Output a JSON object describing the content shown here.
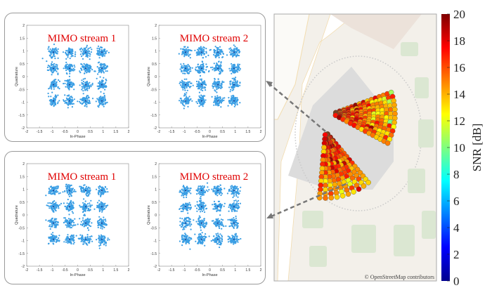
{
  "chart_data": [
    {
      "type": "scatter",
      "panel": "top-left",
      "title": "MIMO stream 1",
      "xlabel": "In-Phase",
      "ylabel": "Quadrature",
      "xlim": [
        -2,
        2
      ],
      "ylim": [
        -2,
        2
      ],
      "ticks": [
        "-2",
        "-1.5",
        "-1",
        "-0.5",
        "0",
        "0.5",
        "1",
        "1.5",
        "2"
      ],
      "constellation_centers": [
        -0.95,
        -0.32,
        0.32,
        0.95
      ],
      "color": "#3a9ee4"
    },
    {
      "type": "scatter",
      "panel": "top-right",
      "title": "MIMO stream 2",
      "xlabel": "In-Phase",
      "ylabel": "Quadrature",
      "xlim": [
        -2,
        2
      ],
      "ylim": [
        -2,
        2
      ],
      "ticks": [
        "-2",
        "-1.5",
        "-1",
        "-0.5",
        "0",
        "0.5",
        "1",
        "1.5",
        "2"
      ],
      "constellation_centers": [
        -0.95,
        -0.32,
        0.32,
        0.95
      ],
      "color": "#3a9ee4"
    },
    {
      "type": "scatter",
      "panel": "bottom-left",
      "title": "MIMO stream 1",
      "xlabel": "In-Phase",
      "ylabel": "Quadrature",
      "xlim": [
        -2,
        2
      ],
      "ylim": [
        -2,
        2
      ],
      "ticks": [
        "-2",
        "-1.5",
        "-1",
        "-0.5",
        "0",
        "0.5",
        "1",
        "1.5",
        "2"
      ],
      "constellation_centers": [
        -0.95,
        -0.32,
        0.32,
        0.95
      ],
      "color": "#3a9ee4"
    },
    {
      "type": "scatter",
      "panel": "bottom-right",
      "title": "MIMO stream 2",
      "xlabel": "In-Phase",
      "ylabel": "Quadrature",
      "xlim": [
        -2,
        2
      ],
      "ylim": [
        -2,
        2
      ],
      "ticks": [
        "-2",
        "-1.5",
        "-1",
        "-0.5",
        "0",
        "0.5",
        "1",
        "1.5",
        "2"
      ],
      "constellation_centers": [
        -0.95,
        -0.32,
        0.32,
        0.95
      ],
      "color": "#3a9ee4"
    },
    {
      "type": "scatter",
      "panel": "map",
      "colorbar": {
        "label": "SNR [dB]",
        "range": [
          0,
          20
        ],
        "ticks": [
          "0",
          "2",
          "4",
          "6",
          "8",
          "10",
          "12",
          "14",
          "16",
          "18",
          "20"
        ],
        "colormap": "jet"
      },
      "snr_range_observed": [
        10,
        19
      ]
    }
  ],
  "map": {
    "attribution": "© OpenStreetMap contributors"
  }
}
